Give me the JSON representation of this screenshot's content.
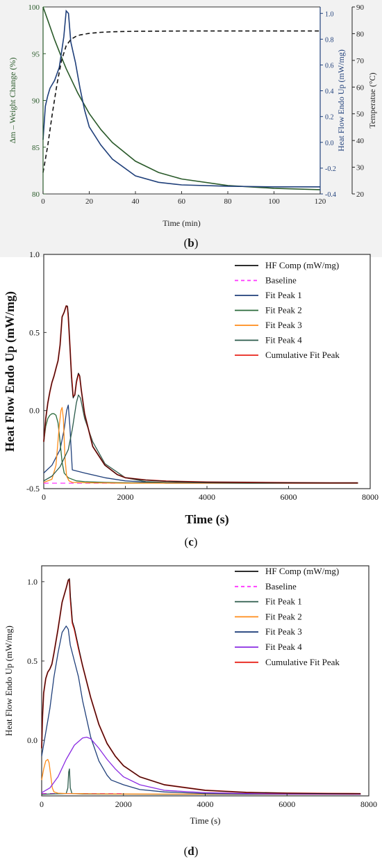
{
  "captions": {
    "b": "b",
    "c": "c",
    "d": "d"
  },
  "chart_data": [
    {
      "id": "b",
      "type": "line",
      "xlabel": "Time (min)",
      "xlim": [
        0,
        120
      ],
      "xticks": [
        0,
        20,
        40,
        60,
        80,
        100,
        120
      ],
      "axes": {
        "y_left": {
          "label": "Δm – Weight Change (%)",
          "lim": [
            80,
            100
          ],
          "ticks": [
            80,
            85,
            90,
            95,
            100
          ],
          "color": "#2a5a2a"
        },
        "y_mid": {
          "label": "Heat Flow Endo Up (mW/mg)",
          "lim": [
            -0.4,
            1.05
          ],
          "ticks": [
            -0.4,
            -0.2,
            0.0,
            0.2,
            0.4,
            0.6,
            0.8,
            1.0
          ],
          "color": "#1f3f7a"
        },
        "y_right": {
          "label": "Temperatue (°C)",
          "lim": [
            20,
            90
          ],
          "ticks": [
            20,
            30,
            40,
            50,
            60,
            70,
            80,
            90
          ],
          "color": "#222222"
        }
      },
      "series": [
        {
          "axis": "y_left",
          "color": "#2a5a2a",
          "style": "solid",
          "x": [
            0,
            2,
            5,
            8,
            10,
            15,
            20,
            25,
            30,
            40,
            50,
            60,
            80,
            100,
            120
          ],
          "y": [
            100,
            98.6,
            96.5,
            94.6,
            93.4,
            90.8,
            88.6,
            86.9,
            85.5,
            83.5,
            82.3,
            81.6,
            80.9,
            80.6,
            80.45
          ]
        },
        {
          "axis": "y_mid",
          "color": "#1f3f7a",
          "style": "solid",
          "x": [
            0,
            1,
            2,
            3,
            5,
            7,
            9,
            10,
            11,
            12,
            13,
            14,
            16,
            18,
            20,
            25,
            30,
            40,
            50,
            60,
            80,
            100,
            120
          ],
          "y": [
            0.02,
            0.28,
            0.36,
            0.42,
            0.48,
            0.58,
            0.82,
            1.02,
            1.0,
            0.78,
            0.7,
            0.62,
            0.42,
            0.25,
            0.12,
            -0.02,
            -0.13,
            -0.26,
            -0.31,
            -0.33,
            -0.34,
            -0.345,
            -0.345
          ]
        },
        {
          "axis": "y_right",
          "color": "#111111",
          "style": "dashed",
          "x": [
            0,
            2,
            4,
            6,
            8,
            10,
            12,
            14,
            16,
            20,
            25,
            30,
            40,
            60,
            80,
            100,
            120
          ],
          "y": [
            28,
            38,
            50,
            61,
            70,
            75.5,
            77.8,
            78.9,
            79.5,
            80.1,
            80.5,
            80.7,
            80.9,
            81,
            81,
            81,
            81
          ]
        }
      ]
    },
    {
      "id": "c",
      "type": "line",
      "xlabel": "Time (s)",
      "ylabel": "Heat Flow Endo Up (mW/mg)",
      "xlim": [
        0,
        8000
      ],
      "ylim": [
        -0.5,
        1.0
      ],
      "xticks": [
        0,
        2000,
        4000,
        6000,
        8000
      ],
      "yticks": [
        -0.5,
        0.0,
        0.5,
        1.0
      ],
      "legend_position": "top-right",
      "legend": [
        {
          "name": "HF Comp (mW/mg)",
          "color": "#111111",
          "dash": false
        },
        {
          "name": "Baseline",
          "color": "#ff33ff",
          "dash": true
        },
        {
          "name": "Fit Peak 1",
          "color": "#1f3f7a",
          "dash": false
        },
        {
          "name": "Fit Peak 2",
          "color": "#2a6a3a",
          "dash": false
        },
        {
          "name": "Fit Peak 3",
          "color": "#ff8c1a",
          "dash": false
        },
        {
          "name": "Fit Peak 4",
          "color": "#2a5a4a",
          "dash": false
        },
        {
          "name": "Cumulative Fit Peak",
          "color": "#e8231a",
          "dash": false
        }
      ],
      "series": [
        {
          "name": "Baseline",
          "color": "#ff33ff",
          "dash": true,
          "width": 1.3,
          "x": [
            0,
            1800
          ],
          "y": [
            -0.465,
            -0.465
          ]
        },
        {
          "name": "Fit Peak 1",
          "color": "#1f3f7a",
          "width": 1.3,
          "x": [
            0,
            200,
            400,
            500,
            560,
            600,
            640,
            700,
            1000,
            1500,
            2000,
            3000,
            5000,
            7700
          ],
          "y": [
            -0.4,
            -0.35,
            -0.25,
            -0.12,
            0.0,
            0.035,
            -0.1,
            -0.38,
            -0.4,
            -0.43,
            -0.45,
            -0.465,
            -0.465,
            -0.465
          ]
        },
        {
          "name": "Fit Peak 2",
          "color": "#2a6a3a",
          "width": 1.3,
          "x": [
            0,
            50,
            100,
            150,
            200,
            250,
            300,
            350,
            400,
            450,
            500,
            600,
            800,
            1000,
            1500,
            2000,
            3000,
            7700
          ],
          "y": [
            -0.2,
            -0.1,
            -0.05,
            -0.03,
            -0.02,
            -0.02,
            -0.03,
            -0.08,
            -0.2,
            -0.33,
            -0.4,
            -0.43,
            -0.45,
            -0.455,
            -0.46,
            -0.462,
            -0.464,
            -0.465
          ]
        },
        {
          "name": "Fit Peak 3",
          "color": "#ff8c1a",
          "width": 1.3,
          "x": [
            0,
            200,
            300,
            380,
            420,
            450,
            480,
            520,
            560,
            620,
            700,
            1000,
            2000,
            3000,
            7700
          ],
          "y": [
            -0.46,
            -0.44,
            -0.35,
            -0.1,
            0.0,
            0.02,
            -0.05,
            -0.3,
            -0.42,
            -0.45,
            -0.46,
            -0.462,
            -0.465,
            -0.465,
            -0.465
          ]
        },
        {
          "name": "Fit Peak 4",
          "color": "#2a5a4a",
          "width": 1.3,
          "x": [
            0,
            200,
            400,
            600,
            700,
            800,
            850,
            900,
            1000,
            1200,
            1500,
            2000,
            2500,
            3000,
            5000,
            7700
          ],
          "y": [
            -0.45,
            -0.42,
            -0.36,
            -0.25,
            -0.12,
            0.05,
            0.1,
            0.08,
            -0.05,
            -0.2,
            -0.34,
            -0.43,
            -0.455,
            -0.46,
            -0.465,
            -0.465
          ]
        },
        {
          "name": "Cumulative Fit Peak",
          "color": "#e8231a",
          "width": 1.9,
          "x": [
            0,
            50,
            100,
            150,
            200,
            250,
            300,
            350,
            400,
            450,
            500,
            550,
            580,
            600,
            640,
            680,
            720,
            760,
            800,
            850,
            880,
            920,
            1000,
            1200,
            1500,
            1800,
            2000,
            2500,
            3000,
            4000,
            5000,
            6000,
            7000,
            7700
          ],
          "y": [
            -0.2,
            -0.05,
            0.05,
            0.12,
            0.18,
            0.22,
            0.27,
            0.32,
            0.42,
            0.6,
            0.63,
            0.67,
            0.665,
            0.6,
            0.42,
            0.22,
            0.09,
            0.1,
            0.18,
            0.235,
            0.22,
            0.13,
            -0.02,
            -0.23,
            -0.35,
            -0.41,
            -0.43,
            -0.445,
            -0.452,
            -0.458,
            -0.46,
            -0.462,
            -0.463,
            -0.463
          ]
        },
        {
          "name": "HF Comp (mW/mg)",
          "color": "#111111",
          "width": 1.0,
          "x": [
            0,
            50,
            100,
            150,
            200,
            250,
            300,
            350,
            400,
            450,
            500,
            550,
            580,
            600,
            640,
            680,
            720,
            760,
            800,
            850,
            880,
            920,
            1000,
            1200,
            1500,
            1800,
            2000,
            2500,
            3000,
            4000,
            5000,
            6000,
            7000,
            7700
          ],
          "y": [
            -0.2,
            -0.05,
            0.05,
            0.12,
            0.18,
            0.22,
            0.27,
            0.32,
            0.42,
            0.6,
            0.63,
            0.67,
            0.67,
            0.62,
            0.42,
            0.2,
            0.08,
            0.1,
            0.19,
            0.24,
            0.225,
            0.13,
            -0.02,
            -0.23,
            -0.35,
            -0.41,
            -0.43,
            -0.445,
            -0.452,
            -0.458,
            -0.46,
            -0.462,
            -0.463,
            -0.463
          ]
        }
      ]
    },
    {
      "id": "d",
      "type": "line",
      "xlabel": "Time (s)",
      "ylabel": "Heat Flow Endo Up (mW/mg)",
      "xlim": [
        0,
        8000
      ],
      "ylim": [
        -0.35,
        1.1
      ],
      "xticks": [
        0,
        2000,
        4000,
        6000,
        8000
      ],
      "yticks": [
        0.0,
        0.5,
        1.0
      ],
      "legend_position": "top-right",
      "legend": [
        {
          "name": "HF Comp (mW/mg)",
          "color": "#111111",
          "dash": false
        },
        {
          "name": "Baseline",
          "color": "#ff33ff",
          "dash": true
        },
        {
          "name": "Fit Peak 1",
          "color": "#2a5a4a",
          "dash": false
        },
        {
          "name": "Fit Peak 2",
          "color": "#ff8c1a",
          "dash": false
        },
        {
          "name": "Fit Peak 3",
          "color": "#1f3f7a",
          "dash": false
        },
        {
          "name": "Fit Peak 4",
          "color": "#8a2be2",
          "dash": false
        },
        {
          "name": "Cumulative Fit Peak",
          "color": "#e8231a",
          "dash": false
        }
      ],
      "series": [
        {
          "name": "Baseline",
          "color": "#ff33ff",
          "dash": true,
          "width": 1.3,
          "x": [
            0,
            2000
          ],
          "y": [
            -0.335,
            -0.335
          ]
        },
        {
          "name": "Fit Peak 1",
          "color": "#2a5a4a",
          "width": 1.3,
          "x": [
            0,
            600,
            640,
            660,
            680,
            700,
            740,
            1000,
            3000,
            7800
          ],
          "y": [
            -0.34,
            -0.335,
            -0.3,
            -0.2,
            -0.18,
            -0.3,
            -0.335,
            -0.338,
            -0.34,
            -0.34
          ]
        },
        {
          "name": "Fit Peak 2",
          "color": "#ff8c1a",
          "width": 1.3,
          "x": [
            0,
            50,
            100,
            150,
            180,
            220,
            260,
            300,
            400,
            600,
            1000,
            2000,
            7800
          ],
          "y": [
            -0.25,
            -0.18,
            -0.13,
            -0.12,
            -0.14,
            -0.22,
            -0.3,
            -0.325,
            -0.333,
            -0.335,
            -0.336,
            -0.338,
            -0.34
          ]
        },
        {
          "name": "Fit Peak 3",
          "color": "#1f3f7a",
          "width": 1.3,
          "x": [
            0,
            100,
            200,
            300,
            400,
            500,
            600,
            650,
            700,
            800,
            900,
            1000,
            1200,
            1400,
            1600,
            1700,
            2000,
            2400,
            3000,
            4000,
            5000,
            7800
          ],
          "y": [
            -0.1,
            0.05,
            0.2,
            0.4,
            0.55,
            0.68,
            0.72,
            0.7,
            0.6,
            0.5,
            0.4,
            0.25,
            0.02,
            -0.13,
            -0.22,
            -0.25,
            -0.28,
            -0.31,
            -0.325,
            -0.335,
            -0.338,
            -0.34
          ]
        },
        {
          "name": "Fit Peak 4",
          "color": "#8a2be2",
          "width": 1.3,
          "x": [
            0,
            200,
            400,
            600,
            800,
            1000,
            1100,
            1200,
            1400,
            1600,
            1800,
            2000,
            2400,
            3000,
            4000,
            5000,
            6000,
            7800
          ],
          "y": [
            -0.33,
            -0.3,
            -0.23,
            -0.12,
            -0.03,
            0.015,
            0.02,
            0.01,
            -0.05,
            -0.12,
            -0.18,
            -0.23,
            -0.28,
            -0.315,
            -0.33,
            -0.335,
            -0.338,
            -0.34
          ]
        },
        {
          "name": "Cumulative Fit Peak",
          "color": "#e8231a",
          "width": 1.9,
          "x": [
            0,
            20,
            50,
            100,
            150,
            200,
            250,
            300,
            400,
            500,
            600,
            650,
            680,
            700,
            750,
            800,
            900,
            1000,
            1200,
            1400,
            1600,
            1800,
            2000,
            2400,
            3000,
            4000,
            5000,
            6000,
            7000,
            7800
          ],
          "y": [
            -0.05,
            0.15,
            0.3,
            0.39,
            0.43,
            0.45,
            0.48,
            0.55,
            0.7,
            0.87,
            0.96,
            1.01,
            1.01,
            0.9,
            0.74,
            0.7,
            0.58,
            0.47,
            0.27,
            0.1,
            -0.02,
            -0.1,
            -0.16,
            -0.23,
            -0.28,
            -0.315,
            -0.328,
            -0.333,
            -0.335,
            -0.336
          ]
        },
        {
          "name": "HF Comp (mW/mg)",
          "color": "#111111",
          "width": 1.0,
          "x": [
            0,
            20,
            50,
            100,
            150,
            200,
            250,
            300,
            400,
            500,
            600,
            650,
            680,
            700,
            750,
            800,
            900,
            1000,
            1200,
            1400,
            1600,
            1800,
            2000,
            2400,
            3000,
            4000,
            5000,
            6000,
            7000,
            7800
          ],
          "y": [
            -0.05,
            0.15,
            0.3,
            0.39,
            0.43,
            0.45,
            0.48,
            0.55,
            0.7,
            0.87,
            0.96,
            1.01,
            1.02,
            0.92,
            0.75,
            0.71,
            0.59,
            0.47,
            0.27,
            0.1,
            -0.02,
            -0.1,
            -0.16,
            -0.23,
            -0.28,
            -0.315,
            -0.328,
            -0.333,
            -0.335,
            -0.336
          ]
        }
      ]
    }
  ]
}
